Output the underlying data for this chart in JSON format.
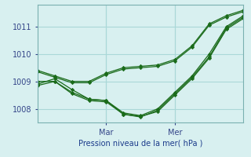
{
  "xlabel": "Pression niveau de la mer( hPa )",
  "bg_color": "#d8f0f0",
  "grid_color": "#aad8d8",
  "line_color": "#1a6b1a",
  "xlim": [
    0,
    72
  ],
  "ylim": [
    1007.5,
    1011.8
  ],
  "yticks": [
    1008,
    1009,
    1010,
    1011
  ],
  "vlines": [
    24,
    48
  ],
  "vline_labels": [
    "Mar",
    "Mer"
  ],
  "series": [
    [
      0,
      1009.4,
      6,
      1009.2,
      12,
      1009.0,
      18,
      1009.0,
      24,
      1009.3,
      30,
      1009.5,
      36,
      1009.55,
      42,
      1009.6,
      48,
      1009.8,
      54,
      1010.3,
      60,
      1011.1,
      66,
      1011.4,
      72,
      1011.6
    ],
    [
      0,
      1008.9,
      6,
      1009.1,
      12,
      1008.7,
      18,
      1008.35,
      24,
      1008.3,
      30,
      1007.85,
      36,
      1007.75,
      42,
      1008.0,
      48,
      1008.6,
      54,
      1009.2,
      60,
      1010.0,
      66,
      1011.0,
      72,
      1011.4
    ],
    [
      0,
      1009.0,
      6,
      1009.0,
      12,
      1008.6,
      18,
      1008.35,
      24,
      1008.3,
      30,
      1007.8,
      36,
      1007.7,
      42,
      1007.95,
      48,
      1008.55,
      54,
      1009.15,
      60,
      1009.9,
      66,
      1010.95,
      72,
      1011.35
    ],
    [
      0,
      1008.85,
      6,
      1009.0,
      12,
      1008.55,
      18,
      1008.3,
      24,
      1008.25,
      30,
      1007.8,
      36,
      1007.72,
      42,
      1007.9,
      48,
      1008.5,
      54,
      1009.1,
      60,
      1009.85,
      66,
      1010.9,
      72,
      1011.3
    ],
    [
      0,
      1009.35,
      6,
      1009.15,
      12,
      1008.95,
      18,
      1008.95,
      24,
      1009.25,
      30,
      1009.45,
      36,
      1009.5,
      42,
      1009.55,
      48,
      1009.75,
      54,
      1010.25,
      60,
      1011.05,
      66,
      1011.35,
      72,
      1011.55
    ]
  ]
}
